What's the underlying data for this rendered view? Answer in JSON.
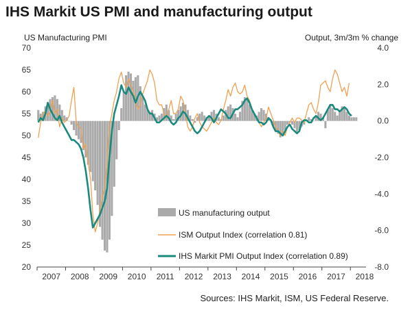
{
  "chart_data": {
    "type": "line",
    "title": "IHS Markit US PMI and manufacturing output",
    "ylabel_left": "US Manufacturing PMI",
    "ylabel_right": "Output, 3m/3m % change",
    "source": "Sources: IHS Markit, ISM, US Federal Reserve.",
    "x_ticks": [
      "2007",
      "2008",
      "2009",
      "2010",
      "2011",
      "2012",
      "2013",
      "2014",
      "2015",
      "2016",
      "2017",
      "2018"
    ],
    "ylim_left": [
      20,
      70
    ],
    "yticks_left": [
      "70",
      "65",
      "60",
      "55",
      "50",
      "45",
      "40",
      "35",
      "30",
      "25",
      "20"
    ],
    "ylim_right": [
      -8,
      4
    ],
    "yticks_right": [
      "4.0",
      "2.0",
      "0.0",
      "-2.0",
      "-4.0",
      "-6.0",
      "-8.0"
    ],
    "legend": [
      {
        "label": "US manufacturing output",
        "kind": "bar",
        "color": "#aaaaaa"
      },
      {
        "label": "ISM Output Index (correlation 0.81)",
        "kind": "line",
        "color": "#f0a050"
      },
      {
        "label": "IHS Markit PMI Output Index (correlation 0.89)",
        "kind": "line",
        "color": "#1a8a7e"
      }
    ],
    "series": [
      {
        "name": "US manufacturing output",
        "axis": "right",
        "x_start": 2007.0,
        "x_step": 0.08333,
        "values": [
          0.6,
          0.4,
          0.5,
          0.8,
          1.0,
          1.2,
          1.3,
          1.4,
          1.2,
          0.9,
          0.6,
          0.3,
          0.2,
          0.0,
          -0.2,
          -0.5,
          -0.8,
          -1.0,
          -1.2,
          -1.6,
          -2.0,
          -2.4,
          -2.8,
          -3.3,
          -3.8,
          -4.6,
          -5.8,
          -6.5,
          -7.1,
          -7.2,
          -6.5,
          -5.2,
          -3.6,
          -2.1,
          -0.5,
          0.7,
          1.6,
          2.5,
          2.7,
          2.6,
          2.2,
          2.4,
          2.5,
          1.9,
          1.3,
          0.9,
          0.6,
          0.5,
          0.6,
          0.4,
          0.2,
          0.3,
          0.4,
          0.7,
          0.9,
          0.6,
          0.3,
          0.1,
          0.4,
          0.6,
          0.8,
          1.0,
          0.9,
          0.6,
          0.3,
          0.1,
          -0.1,
          0.2,
          0.4,
          0.5,
          0.3,
          0.2,
          0.3,
          0.5,
          0.6,
          0.4,
          0.2,
          0.1,
          0.3,
          0.6,
          0.8,
          0.9,
          0.7,
          0.4,
          0.2,
          0.5,
          1.1,
          1.3,
          1.2,
          0.9,
          0.6,
          0.4,
          0.3,
          0.5,
          0.7,
          0.6,
          0.4,
          0.2,
          0.0,
          -0.3,
          -0.5,
          -0.7,
          -0.9,
          -0.8,
          -0.5,
          -0.2,
          -0.1,
          -0.2,
          -0.4,
          -0.6,
          -0.5,
          -0.3,
          -0.2,
          0.0,
          0.2,
          0.1,
          0.0,
          0.3,
          0.5,
          0.4,
          0.2,
          -0.4,
          0.6,
          0.9,
          0.7,
          0.5,
          0.3,
          0.6,
          0.8,
          0.7,
          0.5,
          0.3,
          0.2,
          0.2,
          0.2
        ]
      },
      {
        "name": "ISM Output Index (correlation 0.81)",
        "axis": "left",
        "x_start": 2007.0,
        "x_step": 0.08333,
        "values": [
          49.5,
          53,
          55,
          55.5,
          54.5,
          55.5,
          58,
          55,
          56,
          52,
          54,
          53,
          53.5,
          54.5,
          58,
          61,
          53,
          52,
          51.5,
          47,
          48,
          44,
          40,
          32,
          28,
          30,
          33,
          36,
          38,
          44,
          52,
          55,
          58,
          60,
          63,
          64.5,
          62,
          61,
          63,
          61.5,
          60,
          58,
          56,
          57,
          59.5,
          61,
          62.5,
          65,
          64,
          62,
          58,
          57,
          57,
          55,
          54,
          56,
          58,
          55,
          55,
          56,
          59,
          58,
          55,
          52,
          51,
          52,
          54,
          55,
          53,
          52,
          51.5,
          51,
          52,
          53,
          54,
          53,
          52.5,
          53.5,
          56,
          58,
          60.5,
          59,
          61,
          62,
          60,
          59.5,
          60,
          61.5,
          59,
          58,
          56,
          55,
          54,
          53,
          52,
          53,
          54,
          56.5,
          55,
          53.5,
          52,
          51,
          50,
          51,
          50,
          52,
          53,
          54,
          53,
          54,
          54,
          53.5,
          53,
          55,
          57,
          57.5,
          56,
          55,
          57.5,
          61.5,
          62,
          62.5,
          61,
          60,
          63,
          65,
          64,
          62,
          60,
          61,
          59,
          62
        ]
      },
      {
        "name": "IHS Markit PMI Output Index (correlation 0.89)",
        "axis": "left",
        "x_start": 2007.0,
        "x_step": 0.08333,
        "values": [
          53,
          54,
          53.5,
          55,
          57.5,
          56,
          55,
          54,
          53.5,
          54.5,
          53,
          52,
          51,
          50,
          49,
          49,
          48.5,
          48,
          47,
          45,
          42,
          38,
          33,
          29,
          30,
          31,
          32,
          33.5,
          35,
          38,
          45,
          51,
          55,
          57,
          59,
          61.5,
          60,
          59.5,
          61,
          60,
          59,
          57.5,
          59,
          60,
          59,
          58,
          56,
          55,
          55,
          54,
          53,
          53,
          53.5,
          54,
          54.5,
          54,
          53,
          52.5,
          53,
          54,
          54.5,
          55.5,
          55,
          54,
          53,
          52,
          51,
          50.5,
          51,
          52,
          53,
          54,
          54.5,
          54,
          53,
          54,
          55,
          56,
          55.5,
          55,
          54,
          54,
          55,
          56,
          56,
          56.5,
          57,
          58,
          58.5,
          57.5,
          56,
          55,
          54,
          53,
          53,
          52.5,
          53,
          54,
          53.5,
          52,
          51,
          51,
          50.5,
          50,
          51,
          52,
          52.5,
          51.5,
          51,
          50.5,
          51,
          53,
          53.5,
          53.5,
          53,
          53,
          54,
          54.5,
          54,
          53.5,
          54,
          55,
          56,
          57,
          57,
          56,
          56,
          55.5,
          56,
          56.5,
          56,
          55,
          54.5
        ]
      }
    ]
  }
}
